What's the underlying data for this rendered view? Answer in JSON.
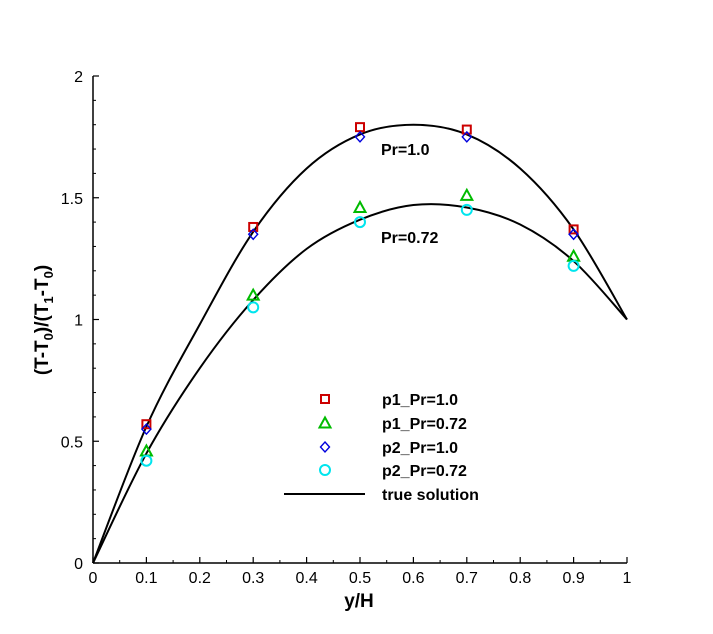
{
  "chart_data": {
    "type": "scatter",
    "xlabel": "y/H",
    "ylabel": {
      "main": "(T-T",
      "sub0": "0",
      "mid": ")/(T",
      "sub1": "1",
      "mid2": "-T",
      "sub2": "0",
      "end": ")"
    },
    "xlim": [
      0,
      1
    ],
    "ylim": [
      0,
      2
    ],
    "x_ticks": [
      "0",
      "0.1",
      "0.2",
      "0.3",
      "0.4",
      "0.5",
      "0.6",
      "0.7",
      "0.8",
      "0.9",
      "1"
    ],
    "y_ticks": [
      "0",
      "0.5",
      "1",
      "1.5",
      "2"
    ],
    "grid": false,
    "legend_position": "lower-middle",
    "annotations": [
      {
        "text": "Pr=1.0",
        "x": 0.52,
        "y": 1.72
      },
      {
        "text": "Pr=0.72",
        "x": 0.52,
        "y": 1.3
      }
    ],
    "series": [
      {
        "name": "p1_Pr=1.0",
        "marker": "square",
        "color": "#cc0000",
        "x": [
          0.1,
          0.3,
          0.5,
          0.7,
          0.9
        ],
        "y": [
          0.57,
          1.38,
          1.79,
          1.78,
          1.37
        ]
      },
      {
        "name": "p1_Pr=0.72",
        "marker": "triangle",
        "color": "#00bb00",
        "x": [
          0.1,
          0.3,
          0.5,
          0.7,
          0.9
        ],
        "y": [
          0.46,
          1.1,
          1.46,
          1.51,
          1.26
        ]
      },
      {
        "name": "p2_Pr=1.0",
        "marker": "diamond",
        "color": "#0000dd",
        "x": [
          0.1,
          0.3,
          0.5,
          0.7,
          0.9
        ],
        "y": [
          0.55,
          1.35,
          1.75,
          1.75,
          1.35
        ]
      },
      {
        "name": "p2_Pr=0.72",
        "marker": "circle",
        "color": "#00e5ee",
        "x": [
          0.1,
          0.3,
          0.5,
          0.7,
          0.9
        ],
        "y": [
          0.42,
          1.05,
          1.4,
          1.45,
          1.22
        ]
      },
      {
        "name": "true solution",
        "marker": "line",
        "color": "#000000",
        "curves": [
          {
            "label": "Pr=1.0",
            "x": [
              0,
              0.1,
              0.2,
              0.3,
              0.4,
              0.5,
              0.6,
              0.7,
              0.8,
              0.9,
              1.0
            ],
            "y": [
              0,
              0.56,
              0.98,
              1.36,
              1.62,
              1.76,
              1.8,
              1.76,
              1.62,
              1.37,
              1.0
            ]
          },
          {
            "label": "Pr=0.72",
            "x": [
              0,
              0.1,
              0.2,
              0.3,
              0.4,
              0.5,
              0.6,
              0.7,
              0.8,
              0.9,
              1.0
            ],
            "y": [
              0,
              0.45,
              0.8,
              1.08,
              1.29,
              1.41,
              1.47,
              1.46,
              1.39,
              1.24,
              1.0
            ]
          }
        ]
      }
    ]
  }
}
